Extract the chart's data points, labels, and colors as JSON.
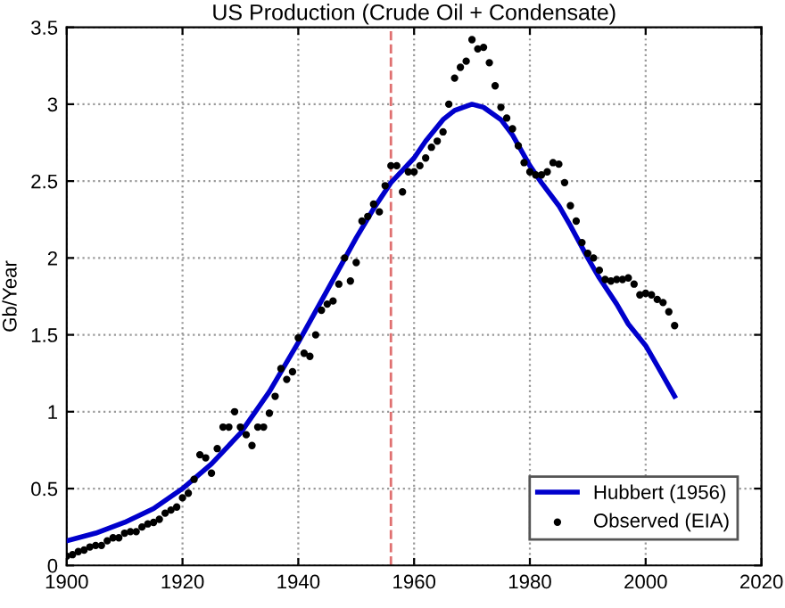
{
  "chart_data": {
    "type": "line",
    "title": "US Production (Crude Oil + Condensate)",
    "ylabel": "Gb/Year",
    "xlim": [
      1900,
      2020
    ],
    "xticks": [
      1900,
      1920,
      1940,
      1960,
      1980,
      2000,
      2020
    ],
    "ylim": [
      0,
      3.5
    ],
    "yticks": [
      0,
      0.5,
      1,
      1.5,
      2,
      2.5,
      3,
      3.5
    ],
    "grid": true,
    "legend": "bottom right",
    "ref_lines": [
      {
        "axis": "x",
        "value": 1956,
        "color": "#e07070",
        "line_style": "dashed"
      }
    ],
    "series": [
      {
        "name": "Hubbert (1956)",
        "color": "#0000cc",
        "marker": "none",
        "line_style": "solid",
        "x": [
          1900,
          1905,
          1910,
          1915,
          1920,
          1925,
          1930,
          1935,
          1940,
          1945,
          1950,
          1953,
          1956,
          1958,
          1960,
          1962,
          1965,
          1967,
          1970,
          1972,
          1975,
          1977,
          1980,
          1982,
          1985,
          1987,
          1990,
          1992,
          1995,
          1997,
          2000,
          2002,
          2005
        ],
        "values": [
          0.16,
          0.21,
          0.28,
          0.37,
          0.5,
          0.66,
          0.86,
          1.13,
          1.45,
          1.79,
          2.13,
          2.32,
          2.49,
          2.57,
          2.65,
          2.76,
          2.9,
          2.96,
          3.0,
          2.98,
          2.9,
          2.8,
          2.6,
          2.49,
          2.34,
          2.21,
          2.0,
          1.87,
          1.7,
          1.57,
          1.43,
          1.3,
          1.1
        ]
      },
      {
        "name": "Observed (EIA)",
        "type": "scatter",
        "color": "#000000",
        "marker": "circle",
        "x": [
          1900,
          1901,
          1902,
          1903,
          1904,
          1905,
          1906,
          1907,
          1908,
          1909,
          1910,
          1911,
          1912,
          1913,
          1914,
          1915,
          1916,
          1917,
          1918,
          1919,
          1920,
          1921,
          1922,
          1923,
          1924,
          1925,
          1926,
          1927,
          1928,
          1929,
          1930,
          1931,
          1932,
          1933,
          1934,
          1935,
          1936,
          1937,
          1938,
          1939,
          1940,
          1941,
          1942,
          1943,
          1944,
          1945,
          1946,
          1947,
          1948,
          1949,
          1950,
          1951,
          1952,
          1953,
          1954,
          1955,
          1956,
          1957,
          1958,
          1959,
          1960,
          1961,
          1962,
          1963,
          1964,
          1965,
          1966,
          1967,
          1968,
          1969,
          1970,
          1971,
          1972,
          1973,
          1974,
          1975,
          1976,
          1977,
          1978,
          1979,
          1980,
          1981,
          1982,
          1983,
          1984,
          1985,
          1986,
          1987,
          1988,
          1989,
          1990,
          1991,
          1992,
          1993,
          1994,
          1995,
          1996,
          1997,
          1998,
          1999,
          2000,
          2001,
          2002,
          2003,
          2004,
          2005
        ],
        "values": [
          0.06,
          0.07,
          0.09,
          0.1,
          0.12,
          0.13,
          0.13,
          0.16,
          0.18,
          0.18,
          0.21,
          0.22,
          0.22,
          0.25,
          0.27,
          0.28,
          0.3,
          0.34,
          0.36,
          0.38,
          0.44,
          0.47,
          0.56,
          0.72,
          0.7,
          0.6,
          0.76,
          0.9,
          0.9,
          1.0,
          0.9,
          0.85,
          0.78,
          0.9,
          0.9,
          0.99,
          1.1,
          1.28,
          1.21,
          1.26,
          1.48,
          1.38,
          1.36,
          1.5,
          1.66,
          1.7,
          1.72,
          1.83,
          2.0,
          1.85,
          1.97,
          2.24,
          2.27,
          2.35,
          2.3,
          2.47,
          2.6,
          2.6,
          2.43,
          2.56,
          2.56,
          2.6,
          2.65,
          2.72,
          2.76,
          2.82,
          3.0,
          3.17,
          3.24,
          3.28,
          3.42,
          3.36,
          3.37,
          3.27,
          3.12,
          2.98,
          2.91,
          2.84,
          2.73,
          2.62,
          2.56,
          2.54,
          2.54,
          2.56,
          2.62,
          2.61,
          2.49,
          2.34,
          2.24,
          2.1,
          2.03,
          2.0,
          1.92,
          1.86,
          1.85,
          1.86,
          1.86,
          1.87,
          1.83,
          1.76,
          1.77,
          1.76,
          1.73,
          1.71,
          1.65,
          1.56
        ]
      }
    ]
  }
}
